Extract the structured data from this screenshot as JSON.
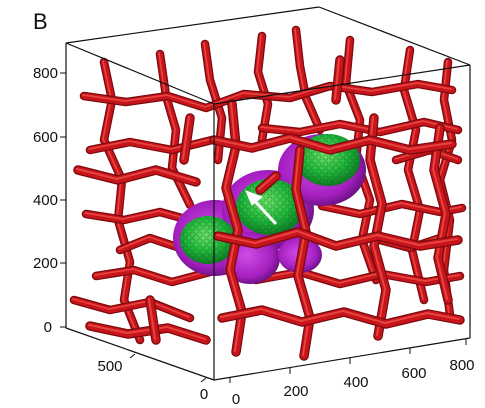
{
  "figure": {
    "panel_label": "B",
    "axes": {
      "vertical_ticks": [
        "0",
        "200",
        "400",
        "600",
        "800"
      ],
      "depth_ticks": [
        "0",
        "500"
      ],
      "horizontal_ticks": [
        "0",
        "200",
        "400",
        "600",
        "800"
      ]
    },
    "colors": {
      "vessels": "#c8141b",
      "vessel_shadow": "#7a0a0e",
      "vessel_highlight": "#ff6b60",
      "tumor_core": "#1fb83c",
      "tumor_shell": "#a51fc0",
      "arrow": "#ffffff",
      "box_lines": "#111111"
    },
    "marker": "white-arrow"
  }
}
